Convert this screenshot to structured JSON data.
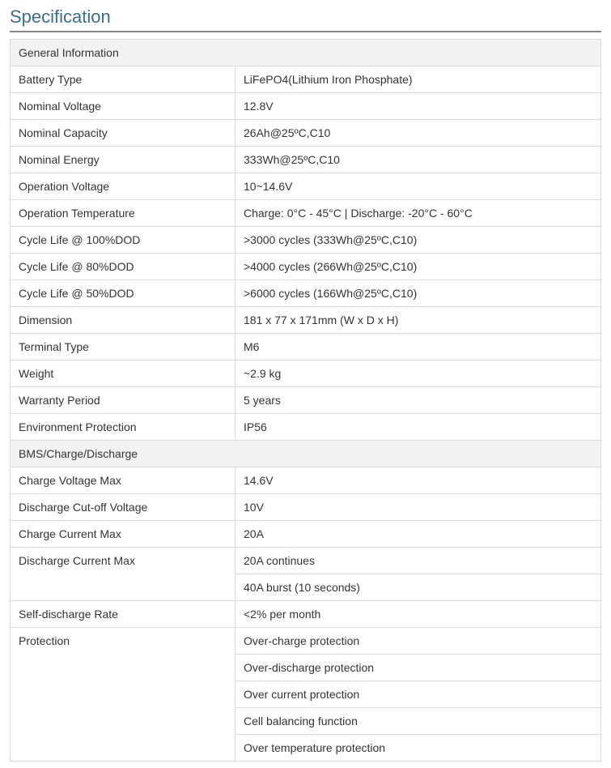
{
  "title": "Specification",
  "colors": {
    "title_color": "#3b6e8f",
    "border_color": "#d9d9d9",
    "header_bg": "#f2f2f2",
    "text_color": "#333333"
  },
  "general": {
    "header": "General Information",
    "rows": [
      {
        "label": "Battery Type",
        "value": "LiFePO4(Lithium Iron Phosphate)"
      },
      {
        "label": "Nominal Voltage",
        "value": "12.8V"
      },
      {
        "label": "Nominal Capacity",
        "value": "26Ah@25ºC,C10"
      },
      {
        "label": "Nominal Energy",
        "value": "333Wh@25ºC,C10"
      },
      {
        "label": "Operation Voltage",
        "value": "10~14.6V"
      },
      {
        "label": "Operation Temperature",
        "value": "Charge: 0°C - 45°C | Discharge: -20°C - 60°C"
      },
      {
        "label": "Cycle Life @ 100%DOD",
        "value": ">3000 cycles (333Wh@25ºC,C10)"
      },
      {
        "label": "Cycle Life @ 80%DOD",
        "value": ">4000 cycles (266Wh@25ºC,C10)"
      },
      {
        "label": "Cycle Life @ 50%DOD",
        "value": ">6000 cycles (166Wh@25ºC,C10)"
      },
      {
        "label": "Dimension",
        "value": "181 x 77 x 171mm (W x D x H)"
      },
      {
        "label": "Terminal Type",
        "value": "M6"
      },
      {
        "label": "Weight",
        "value": "~2.9 kg"
      },
      {
        "label": "Warranty Period",
        "value": "5 years"
      },
      {
        "label": "Environment Protection",
        "value": "IP56"
      }
    ]
  },
  "bms": {
    "header": "BMS/Charge/Discharge",
    "rows": [
      {
        "label": "Charge Voltage Max",
        "values": [
          "14.6V"
        ]
      },
      {
        "label": "Discharge Cut-off Voltage",
        "values": [
          "10V"
        ]
      },
      {
        "label": "Charge Current Max",
        "values": [
          "20A"
        ]
      },
      {
        "label": "Discharge Current Max",
        "values": [
          "20A continues",
          "40A burst (10 seconds)"
        ]
      },
      {
        "label": "Self-discharge Rate",
        "values": [
          "<2% per month"
        ]
      },
      {
        "label": "Protection",
        "values": [
          "Over-charge protection",
          "Over-discharge protection",
          "Over current protection",
          "Cell balancing function",
          "Over temperature protection"
        ]
      }
    ]
  }
}
